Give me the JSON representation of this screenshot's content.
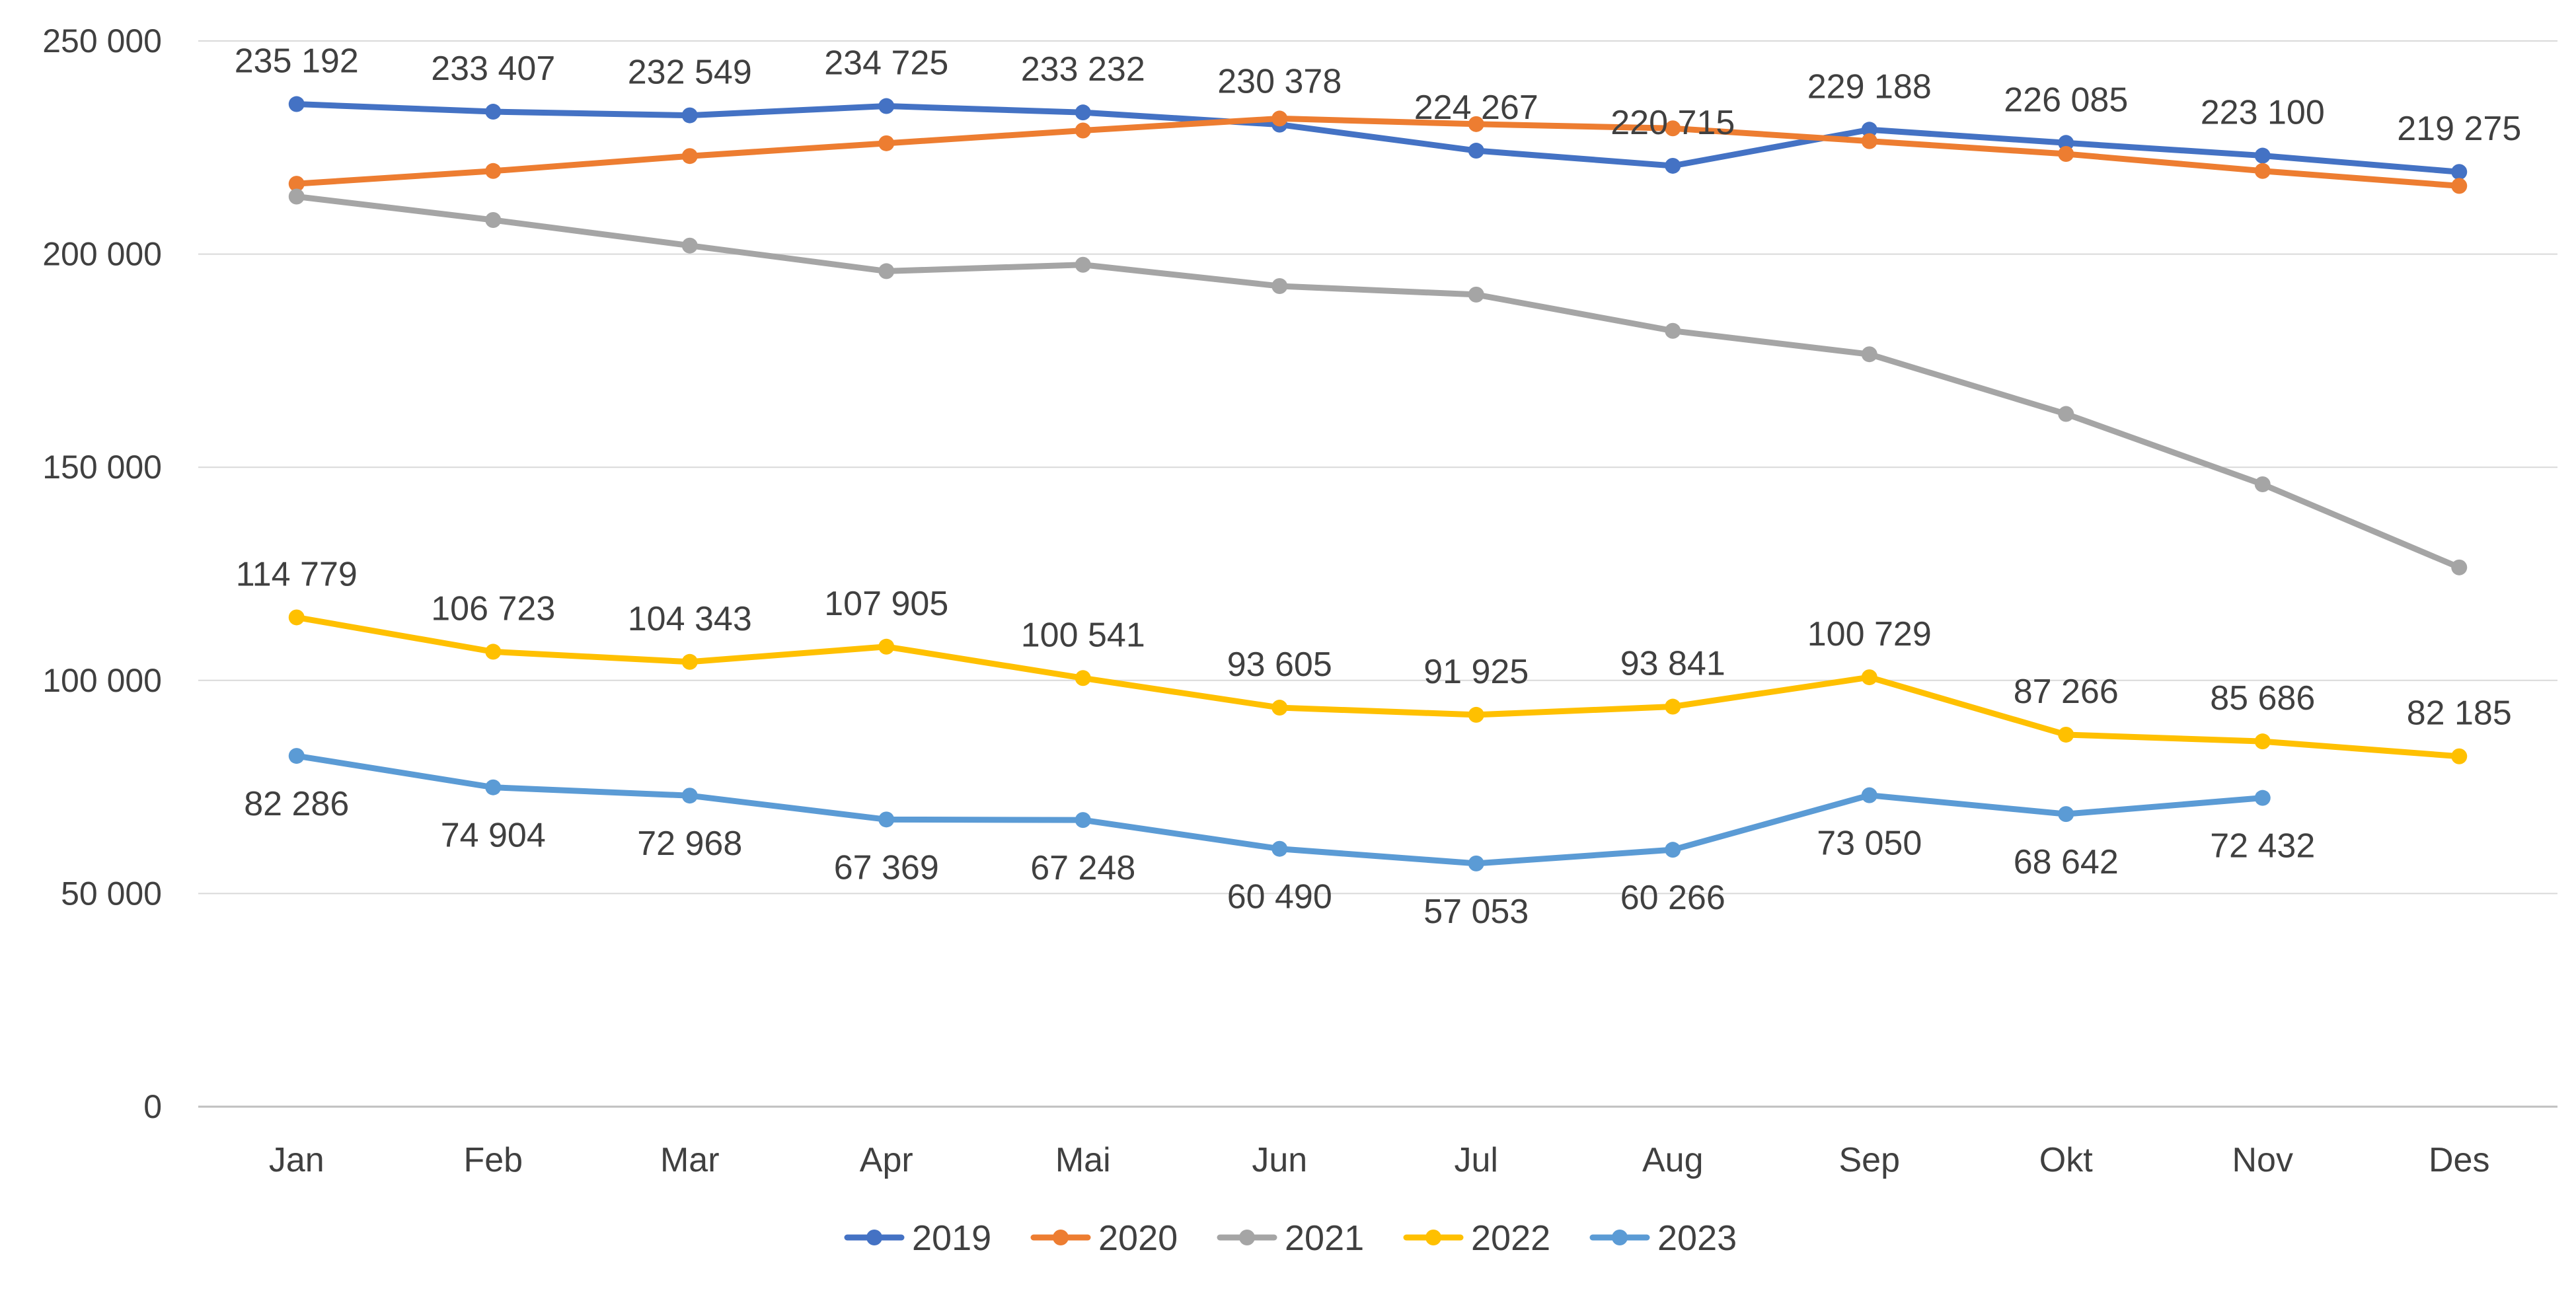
{
  "chart_data": {
    "type": "line",
    "title": "",
    "xlabel": "",
    "ylabel": "",
    "categories": [
      "Jan",
      "Feb",
      "Mar",
      "Apr",
      "Mai",
      "Jun",
      "Jul",
      "Aug",
      "Sep",
      "Okt",
      "Nov",
      "Des"
    ],
    "ylim": [
      0,
      250000
    ],
    "yticks": [
      0,
      50000,
      100000,
      150000,
      200000,
      250000
    ],
    "ytick_labels": [
      "0",
      "50 000",
      "100 000",
      "150 000",
      "200 000",
      "250 000"
    ],
    "grid": true,
    "legend_position": "bottom",
    "series": [
      {
        "name": "2019",
        "color": "#4472C4",
        "values": [
          235192,
          233407,
          232549,
          234725,
          233232,
          230378,
          224267,
          220715,
          229188,
          226085,
          223100,
          219275
        ],
        "labels": [
          "235 192",
          "233 407",
          "232 549",
          "234 725",
          "233 232",
          "230 378",
          "224 267",
          "220 715",
          "229 188",
          "226 085",
          "223 100",
          "219 275"
        ],
        "label_position": "above"
      },
      {
        "name": "2020",
        "color": "#ED7D31",
        "values": [
          216500,
          219500,
          223000,
          226000,
          229000,
          231800,
          230500,
          229500,
          226500,
          223500,
          219500,
          216000
        ],
        "labels": [],
        "label_position": "none"
      },
      {
        "name": "2021",
        "color": "#A5A5A5",
        "values": [
          213500,
          208000,
          202000,
          196000,
          197500,
          192500,
          190500,
          182000,
          176500,
          162500,
          146000,
          126500
        ],
        "labels": [],
        "label_position": "none"
      },
      {
        "name": "2022",
        "color": "#FFC000",
        "values": [
          114779,
          106723,
          104343,
          107905,
          100541,
          93605,
          91925,
          93841,
          100729,
          87266,
          85686,
          82185
        ],
        "labels": [
          "114 779",
          "106 723",
          "104 343",
          "107 905",
          "100 541",
          "93 605",
          "91 925",
          "93 841",
          "100 729",
          "87 266",
          "85 686",
          "82 185"
        ],
        "label_position": "above"
      },
      {
        "name": "2023",
        "color": "#5B9BD5",
        "values": [
          82286,
          74904,
          72968,
          67369,
          67248,
          60490,
          57053,
          60266,
          73050,
          68642,
          72432,
          null
        ],
        "labels": [
          "82 286",
          "74 904",
          "72 968",
          "67 369",
          "67 248",
          "60 490",
          "57 053",
          "60 266",
          "73 050",
          "68 642",
          "72 432",
          ""
        ],
        "label_position": "below"
      }
    ]
  }
}
